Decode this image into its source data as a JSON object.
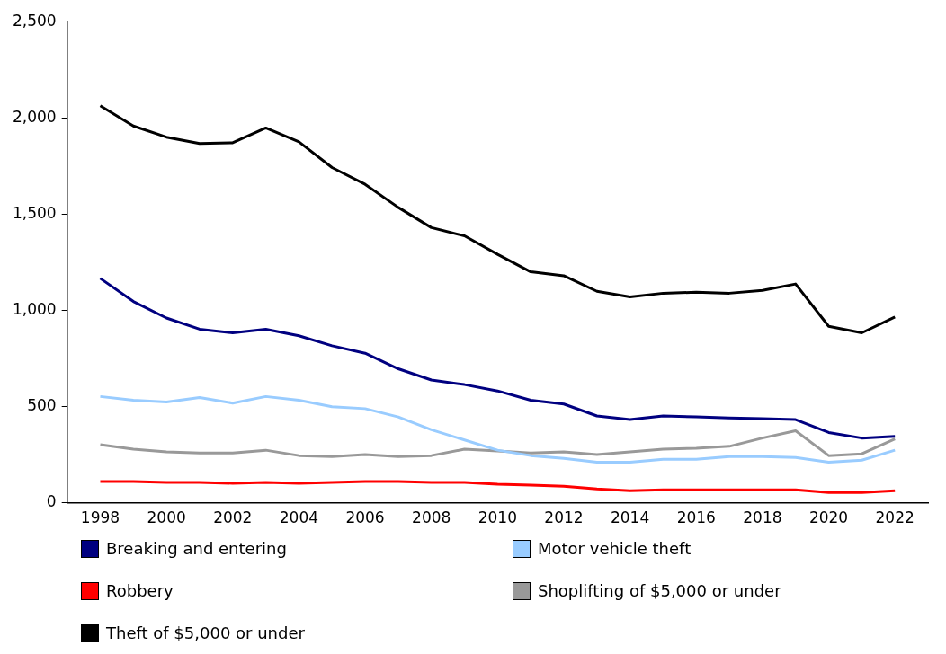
{
  "chart_data": {
    "type": "line",
    "x": [
      1998,
      1999,
      2000,
      2001,
      2002,
      2003,
      2004,
      2005,
      2006,
      2007,
      2008,
      2009,
      2010,
      2011,
      2012,
      2013,
      2014,
      2015,
      2016,
      2017,
      2018,
      2019,
      2020,
      2021,
      2022
    ],
    "xlim": [
      1997,
      2023
    ],
    "xticks": [
      1998,
      2000,
      2002,
      2004,
      2006,
      2008,
      2010,
      2012,
      2014,
      2016,
      2018,
      2020,
      2022
    ],
    "ylim": [
      0,
      2500
    ],
    "yticks": [
      {
        "value": 0,
        "label": "0"
      },
      {
        "value": 500,
        "label": "500"
      },
      {
        "value": 1000,
        "label": "1,000"
      },
      {
        "value": 1500,
        "label": "1,500"
      },
      {
        "value": 2000,
        "label": "2,000"
      },
      {
        "value": 2500,
        "label": "2,500"
      }
    ],
    "grid": false,
    "legend": "bottom",
    "marker": "none",
    "line_style": "solid",
    "series": [
      {
        "name": "Breaking and entering",
        "color": "#000080",
        "values": [
          1166,
          1046,
          960,
          902,
          883,
          902,
          868,
          816,
          777,
          696,
          638,
          614,
          581,
          533,
          513,
          451,
          432,
          451,
          446,
          441,
          437,
          432,
          365,
          336,
          345
        ]
      },
      {
        "name": "Motor vehicle theft",
        "color": "#99ccff",
        "values": [
          552,
          533,
          523,
          547,
          518,
          552,
          533,
          499,
          489,
          446,
          379,
          326,
          273,
          245,
          230,
          211,
          211,
          226,
          226,
          240,
          240,
          235,
          211,
          221,
          273
        ]
      },
      {
        "name": "Robbery",
        "color": "#ff0000",
        "values": [
          110,
          110,
          106,
          106,
          101,
          106,
          101,
          106,
          110,
          110,
          106,
          106,
          96,
          91,
          86,
          72,
          62,
          67,
          67,
          67,
          67,
          67,
          53,
          53,
          62
        ]
      },
      {
        "name": "Shoplifting of $5,000 or under",
        "color": "#999999",
        "values": [
          302,
          278,
          264,
          259,
          259,
          273,
          245,
          240,
          250,
          240,
          245,
          278,
          269,
          259,
          264,
          250,
          264,
          278,
          283,
          293,
          336,
          374,
          245,
          254,
          331
        ]
      },
      {
        "name": "Theft of $5,000 or under",
        "color": "#000000",
        "values": [
          2063,
          1958,
          1900,
          1867,
          1871,
          1948,
          1876,
          1742,
          1655,
          1535,
          1430,
          1387,
          1291,
          1200,
          1180,
          1099,
          1070,
          1089,
          1094,
          1089,
          1104,
          1137,
          917,
          883,
          965
        ]
      }
    ]
  }
}
